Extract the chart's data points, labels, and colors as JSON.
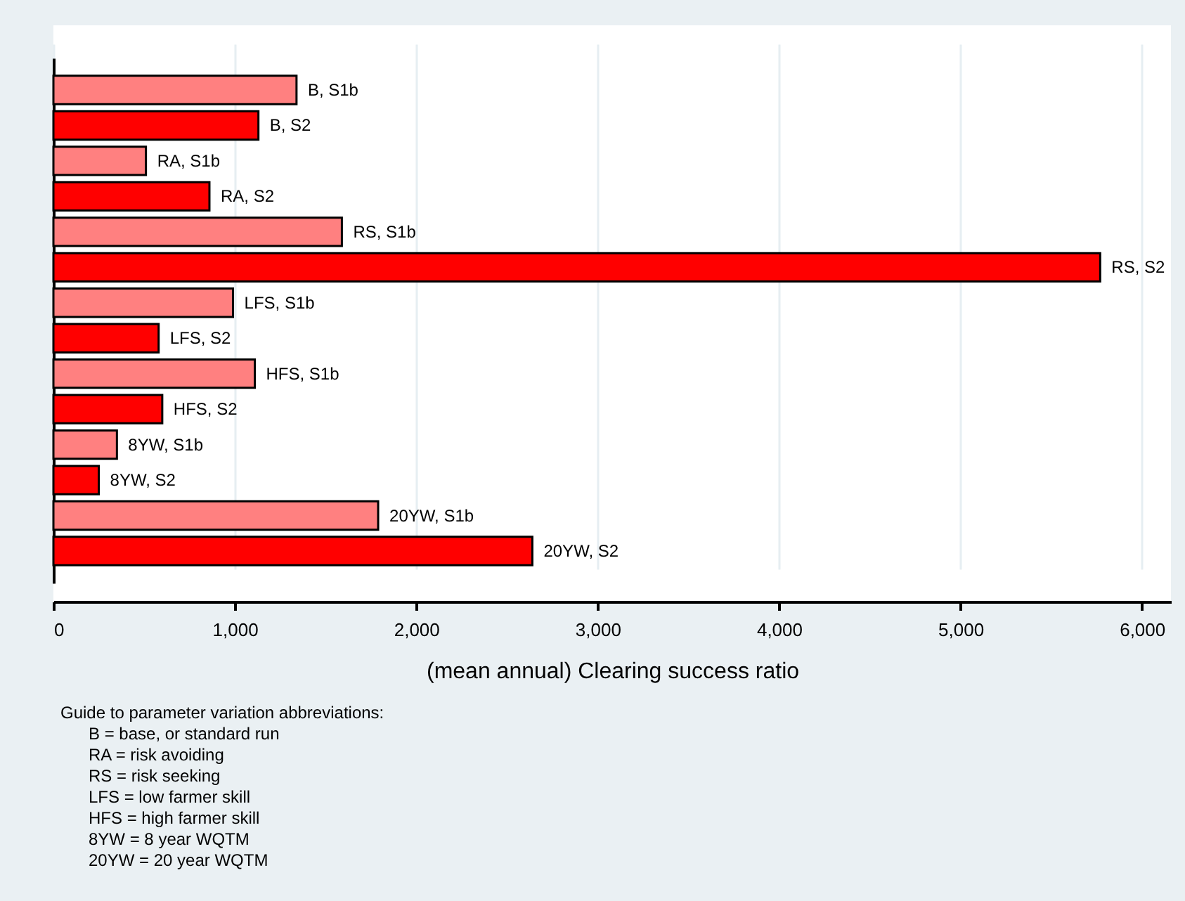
{
  "chart_data": {
    "type": "bar",
    "orientation": "horizontal",
    "categories": [
      "B, S1b",
      "B, S2",
      "RA, S1b",
      "RA, S2",
      "RS, S1b",
      "RS, S2",
      "LFS, S1b",
      "LFS, S2",
      "HFS, S1b",
      "HFS, S2",
      "8YW, S1b",
      "8YW, S2",
      "20YW, S1b",
      "20YW, S2"
    ],
    "values": [
      1340,
      1130,
      510,
      860,
      1590,
      5770,
      990,
      580,
      1110,
      600,
      350,
      250,
      1790,
      2640
    ],
    "colors": [
      "#ff8080",
      "#ff0000",
      "#ff8080",
      "#ff0000",
      "#ff8080",
      "#ff0000",
      "#ff8080",
      "#ff0000",
      "#ff8080",
      "#ff0000",
      "#ff8080",
      "#ff0000",
      "#ff8080",
      "#ff0000"
    ],
    "xlim": [
      0,
      6160
    ],
    "xticks": [
      {
        "value": 0,
        "label": "0"
      },
      {
        "value": 1000,
        "label": "1,000"
      },
      {
        "value": 2000,
        "label": "2,000"
      },
      {
        "value": 3000,
        "label": "3,000"
      },
      {
        "value": 4000,
        "label": "4,000"
      },
      {
        "value": 5000,
        "label": "5,000"
      },
      {
        "value": 6000,
        "label": "6,000"
      }
    ],
    "xlabel": "(mean annual) Clearing success ratio",
    "grid": "x",
    "tick_labels": "x",
    "annotations": [
      "Guide to parameter variation abbreviations:",
      "B = base, or standard run",
      "RA = risk avoiding",
      "RS = risk seeking",
      "LFS = low farmer skill",
      "HFS = high farmer skill",
      "8YW = 8 year WQTM",
      "20YW = 20 year WQTM"
    ]
  }
}
